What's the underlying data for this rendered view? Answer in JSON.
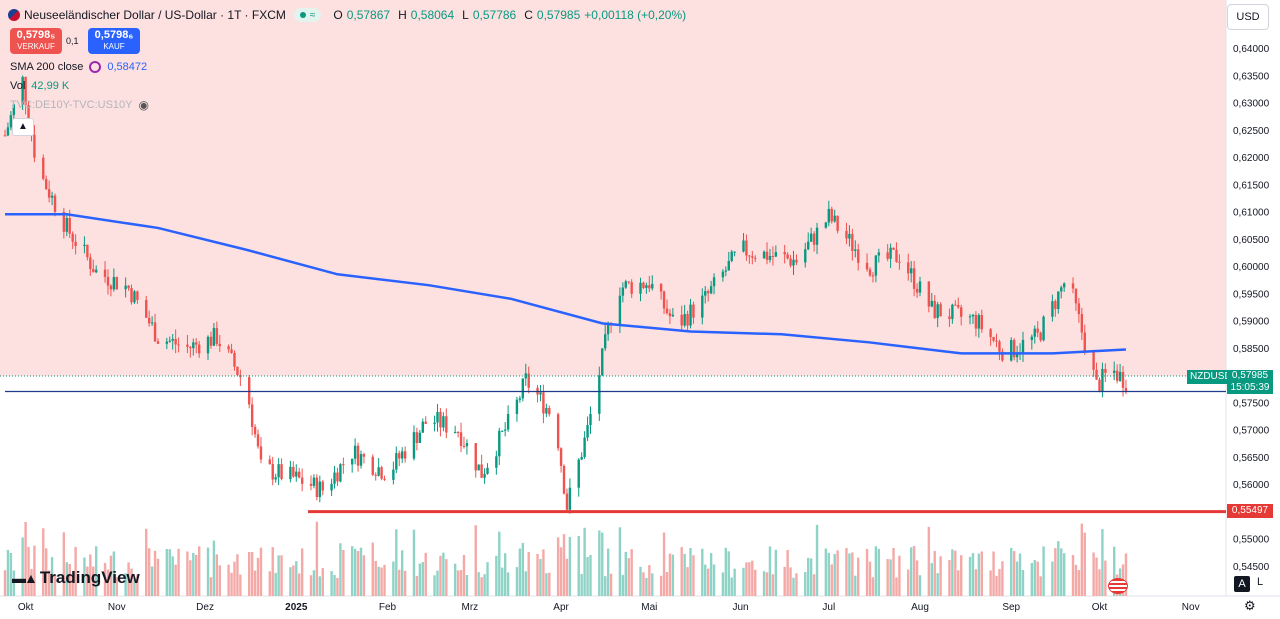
{
  "header": {
    "title": "Neuseeländischer Dollar / US-Dollar · 1T · FXCM",
    "o_label": "O",
    "o_val": "0,57867",
    "h_label": "H",
    "h_val": "0,58064",
    "l_label": "L",
    "l_val": "0,57786",
    "c_label": "C",
    "c_val": "0,57985",
    "change": "+0,00118 (+0,20%)"
  },
  "trade": {
    "sell_price": "0,5798₅",
    "sell_label": "VERKAUF",
    "spread": "0,1",
    "buy_price": "0,5798₆",
    "buy_label": "KAUF"
  },
  "indicators": {
    "sma_label": "SMA 200 close",
    "sma_value": "0,58472",
    "vol_label": "Vol",
    "vol_value": "42,99 K",
    "compare": "TVC:DE10Y-TVC:US10Y"
  },
  "currency": "USD",
  "price_labels": {
    "symbol": "NZDUSD",
    "last": "0,57985",
    "countdown": "15:05:39",
    "hline": "0,55497"
  },
  "brand": "TradingView",
  "controls": {
    "auto": "A",
    "log": "L"
  },
  "colors": {
    "up": "#089981",
    "down": "#ef5350",
    "sma": "#2962ff",
    "upper_zone": "#fde0e0",
    "support": "#e53935",
    "hline_blue": "#1e3a8a"
  },
  "chart_data": {
    "type": "candlestick",
    "title": "Neuseeländischer Dollar / US-Dollar · 1T · FXCM",
    "y_ticks": [
      "0,64000",
      "0,63500",
      "0,63000",
      "0,62500",
      "0,62000",
      "0,61500",
      "0,61000",
      "0,60500",
      "0,60000",
      "0,59500",
      "0,59000",
      "0,58500",
      "0,58000",
      "0,57500",
      "0,57000",
      "0,56500",
      "0,56000",
      "0,55500",
      "0,55000",
      "0,54500"
    ],
    "ylim": [
      0.5425,
      0.6425
    ],
    "x_ticks": [
      "Okt",
      "Nov",
      "Dez",
      "2025",
      "Feb",
      "Mrz",
      "Apr",
      "Mai",
      "Jun",
      "Jul",
      "Aug",
      "Sep",
      "Okt",
      "Nov"
    ],
    "x_range": [
      "2024-09-24",
      "2025-11-13"
    ],
    "close_path": [
      {
        "date": "2024-09-24",
        "v": 0.624
      },
      {
        "date": "2024-09-30",
        "v": 0.634
      },
      {
        "date": "2024-10-05",
        "v": 0.618
      },
      {
        "date": "2024-10-15",
        "v": 0.607
      },
      {
        "date": "2024-10-25",
        "v": 0.599
      },
      {
        "date": "2024-11-05",
        "v": 0.596
      },
      {
        "date": "2024-11-15",
        "v": 0.587
      },
      {
        "date": "2024-11-25",
        "v": 0.585
      },
      {
        "date": "2024-12-05",
        "v": 0.587
      },
      {
        "date": "2024-12-15",
        "v": 0.578
      },
      {
        "date": "2024-12-20",
        "v": 0.563
      },
      {
        "date": "2025-01-01",
        "v": 0.561
      },
      {
        "date": "2025-01-10",
        "v": 0.559
      },
      {
        "date": "2025-01-20",
        "v": 0.566
      },
      {
        "date": "2025-02-01",
        "v": 0.562
      },
      {
        "date": "2025-02-15",
        "v": 0.572
      },
      {
        "date": "2025-02-25",
        "v": 0.57
      },
      {
        "date": "2025-03-05",
        "v": 0.562
      },
      {
        "date": "2025-03-15",
        "v": 0.572
      },
      {
        "date": "2025-03-20",
        "v": 0.579
      },
      {
        "date": "2025-03-30",
        "v": 0.572
      },
      {
        "date": "2025-04-03",
        "v": 0.556
      },
      {
        "date": "2025-04-10",
        "v": 0.57
      },
      {
        "date": "2025-04-20",
        "v": 0.596
      },
      {
        "date": "2025-05-01",
        "v": 0.597
      },
      {
        "date": "2025-05-10",
        "v": 0.589
      },
      {
        "date": "2025-05-20",
        "v": 0.594
      },
      {
        "date": "2025-06-01",
        "v": 0.603
      },
      {
        "date": "2025-06-20",
        "v": 0.601
      },
      {
        "date": "2025-07-01",
        "v": 0.609
      },
      {
        "date": "2025-07-15",
        "v": 0.6
      },
      {
        "date": "2025-07-25",
        "v": 0.602
      },
      {
        "date": "2025-08-05",
        "v": 0.592
      },
      {
        "date": "2025-08-20",
        "v": 0.59
      },
      {
        "date": "2025-08-30",
        "v": 0.584
      },
      {
        "date": "2025-09-10",
        "v": 0.587
      },
      {
        "date": "2025-09-20",
        "v": 0.598
      },
      {
        "date": "2025-09-30",
        "v": 0.578
      },
      {
        "date": "2025-10-05",
        "v": 0.581
      },
      {
        "date": "2025-10-10",
        "v": 0.579
      }
    ],
    "sma200_path": [
      {
        "date": "2024-09-24",
        "v": 0.6095
      },
      {
        "date": "2024-10-15",
        "v": 0.6095
      },
      {
        "date": "2024-11-15",
        "v": 0.607
      },
      {
        "date": "2024-12-15",
        "v": 0.603
      },
      {
        "date": "2025-01-15",
        "v": 0.5985
      },
      {
        "date": "2025-02-15",
        "v": 0.5965
      },
      {
        "date": "2025-03-15",
        "v": 0.594
      },
      {
        "date": "2025-04-15",
        "v": 0.5895
      },
      {
        "date": "2025-05-15",
        "v": 0.588
      },
      {
        "date": "2025-06-15",
        "v": 0.5875
      },
      {
        "date": "2025-07-15",
        "v": 0.586
      },
      {
        "date": "2025-08-15",
        "v": 0.584
      },
      {
        "date": "2025-09-15",
        "v": 0.584
      },
      {
        "date": "2025-10-10",
        "v": 0.5847
      }
    ],
    "hlines": [
      {
        "value": 0.55497,
        "color": "#e53935",
        "start": "2025-01-05"
      },
      {
        "value": 0.577,
        "color": "#1e3a8a",
        "start": "2024-09-24"
      }
    ],
    "volume_axis": false
  }
}
